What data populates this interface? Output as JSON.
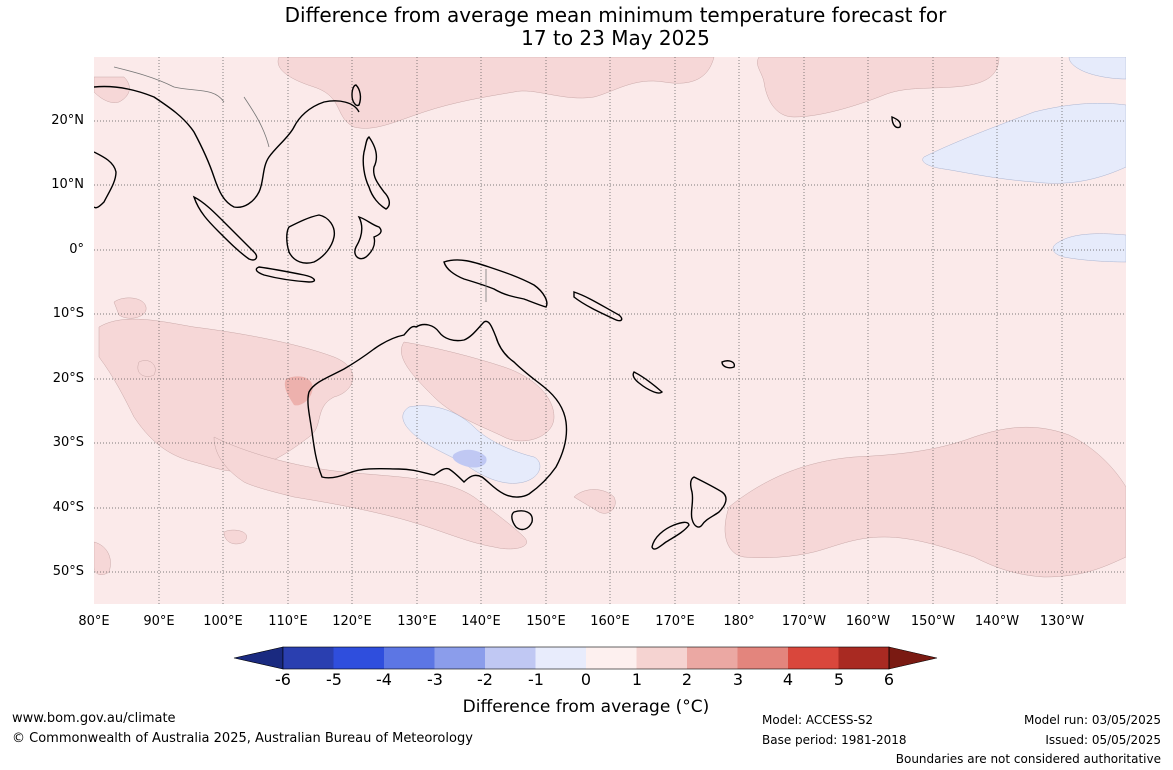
{
  "title": {
    "line1": "Difference from average mean minimum temperature forecast for",
    "line2": "17 to 23 May 2025"
  },
  "map": {
    "lat_labels": [
      "20°N",
      "10°N",
      "0°",
      "10°S",
      "20°S",
      "30°S",
      "40°S",
      "50°S"
    ],
    "lon_labels": [
      "80°E",
      "90°E",
      "100°E",
      "110°E",
      "120°E",
      "130°E",
      "140°E",
      "150°E",
      "160°E",
      "170°E",
      "180°",
      "170°W",
      "160°W",
      "150°W",
      "140°W",
      "130°W"
    ],
    "background_color": "#fbeaea",
    "regions": [
      {
        "name": "warm-anomaly-1-to-2",
        "color": "#f6d7d7"
      },
      {
        "name": "cool-anomaly-0-to-minus-1",
        "color": "#e6ebfb"
      }
    ]
  },
  "colorbar": {
    "tick_labels": [
      "-6",
      "-5",
      "-4",
      "-3",
      "-2",
      "-1",
      "0",
      "1",
      "2",
      "3",
      "4",
      "5",
      "6"
    ],
    "colors": [
      "#1a2a80",
      "#2a3fb0",
      "#2f4edd",
      "#5c76e4",
      "#8b9deb",
      "#c0c8f3",
      "#e8ecfc",
      "#fdf0ef",
      "#f5d3d1",
      "#eba8a3",
      "#e3857d",
      "#d9473c",
      "#a92a22",
      "#7a1a12"
    ],
    "title": "Difference from average (°C)"
  },
  "footer": {
    "website": "www.bom.gov.au/climate",
    "copyright": "© Commonwealth of Australia 2025, Australian Bureau of Meteorology",
    "model": "Model: ACCESS-S2",
    "base_period": "Base period: 1981-2018",
    "model_run": "Model run: 03/05/2025",
    "issued": "Issued: 05/05/2025",
    "disclaimer": "Boundaries are not considered authoritative"
  }
}
